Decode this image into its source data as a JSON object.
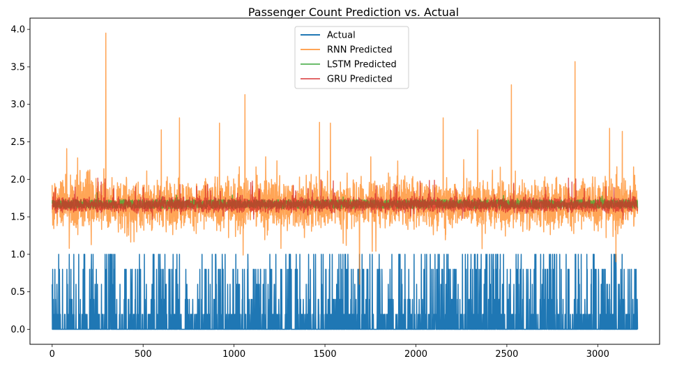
{
  "chart_data": {
    "type": "line",
    "title": "Passenger Count Prediction vs. Actual",
    "xlabel": "",
    "ylabel": "",
    "xlim": [
      -122,
      3340
    ],
    "ylim": [
      -0.2,
      4.15
    ],
    "xticks": [
      0,
      500,
      1000,
      1500,
      2000,
      2500,
      3000
    ],
    "yticks": [
      0.0,
      0.5,
      1.0,
      1.5,
      2.0,
      2.5,
      3.0,
      3.5,
      4.0
    ],
    "xtick_labels": [
      "0",
      "500",
      "1000",
      "1500",
      "2000",
      "2500",
      "3000"
    ],
    "ytick_labels": [
      "0.0",
      "0.5",
      "1.0",
      "1.5",
      "2.0",
      "2.5",
      "3.0",
      "3.5",
      "4.0"
    ],
    "grid": false,
    "legend_position": "upper center",
    "n_points": 3220,
    "series": [
      {
        "name": "Actual",
        "color": "#1f77b4",
        "alpha": 1.0,
        "baseline": 0.0,
        "values_observed": [
          0.0,
          0.2,
          0.4,
          0.6,
          0.8,
          1.0
        ],
        "sample_spikes": [
          [
            0,
            0.6
          ],
          [
            3,
            0.8
          ],
          [
            15,
            0.8
          ],
          [
            40,
            0.8
          ],
          [
            310,
            1.0
          ],
          [
            330,
            1.0
          ],
          [
            480,
            1.0
          ],
          [
            560,
            1.0
          ],
          [
            700,
            1.0
          ],
          [
            880,
            1.0
          ],
          [
            1010,
            1.0
          ],
          [
            1230,
            1.0
          ],
          [
            1480,
            1.0
          ],
          [
            1540,
            1.0
          ],
          [
            1610,
            1.0
          ],
          [
            1760,
            1.0
          ],
          [
            1990,
            1.0
          ],
          [
            2170,
            1.0
          ],
          [
            2450,
            1.0
          ],
          [
            2660,
            1.0
          ],
          [
            2980,
            1.0
          ],
          [
            3100,
            1.0
          ],
          [
            3205,
            0.8
          ]
        ]
      },
      {
        "name": "RNN Predicted",
        "color": "#ff7f0e",
        "alpha": 0.7,
        "mean": 1.67,
        "range": [
          0.6,
          3.95
        ],
        "sample_peaks": [
          [
            295,
            3.95
          ],
          [
            80,
            2.41
          ],
          [
            600,
            2.66
          ],
          [
            700,
            2.82
          ],
          [
            920,
            2.75
          ],
          [
            1060,
            3.13
          ],
          [
            1470,
            2.76
          ],
          [
            1530,
            2.75
          ],
          [
            2150,
            2.82
          ],
          [
            2340,
            2.66
          ],
          [
            2525,
            3.26
          ],
          [
            2875,
            3.57
          ],
          [
            3065,
            2.68
          ],
          [
            3135,
            2.64
          ],
          [
            1690,
            0.6
          ],
          [
            1050,
            0.99
          ],
          [
            3100,
            0.9
          ]
        ]
      },
      {
        "name": "LSTM Predicted",
        "color": "#2ca02c",
        "alpha": 0.7,
        "mean": 1.67,
        "range": [
          1.6,
          1.8
        ]
      },
      {
        "name": "GRU Predicted",
        "color": "#d62728",
        "alpha": 0.7,
        "mean": 1.66,
        "range": [
          1.5,
          2.1
        ]
      }
    ]
  }
}
